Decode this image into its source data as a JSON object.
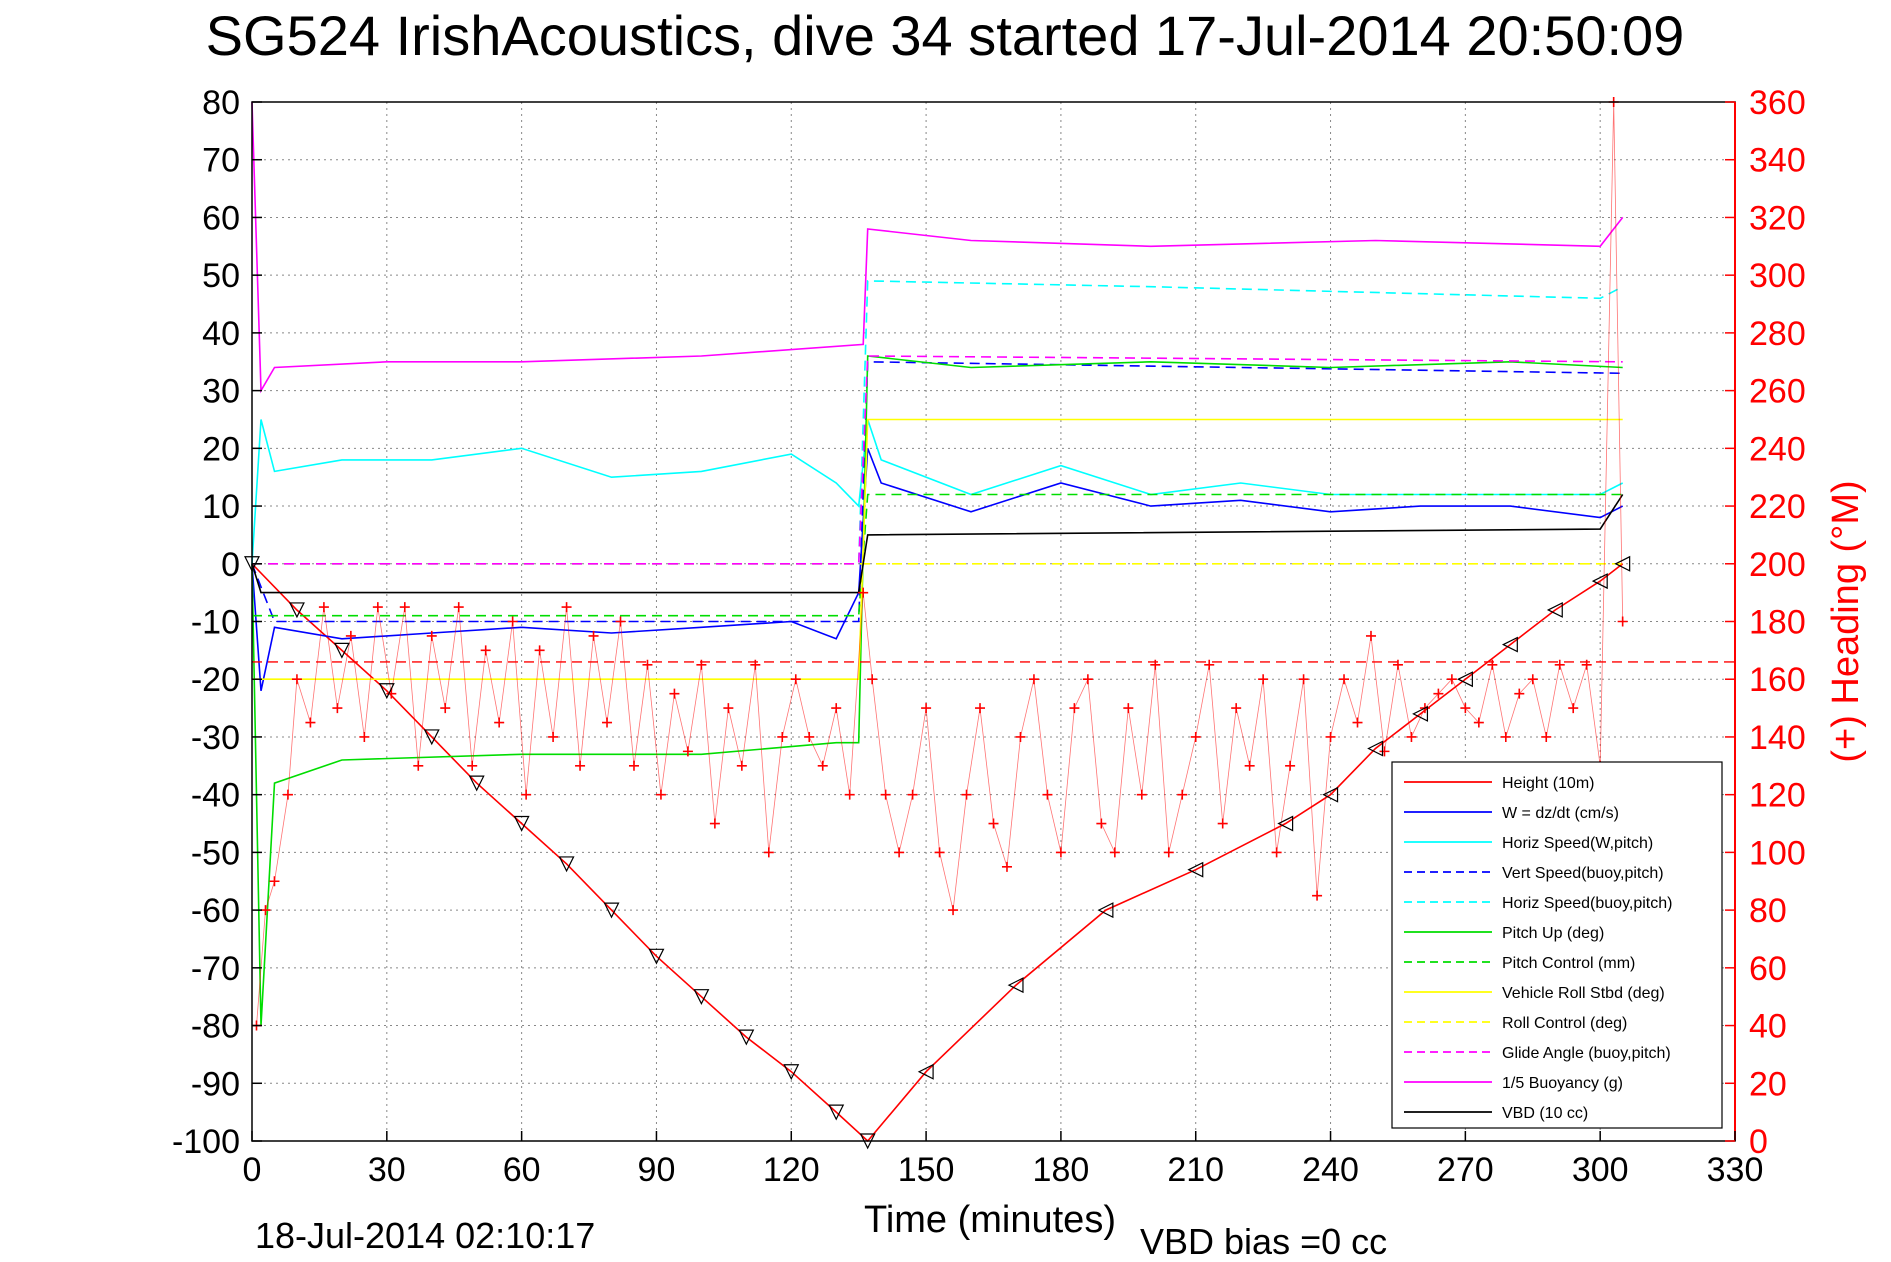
{
  "chart_data": {
    "type": "line",
    "title": "SG524 IrishAcoustics, dive 34 started 17-Jul-2014 20:50:09",
    "xlabel": "Time (minutes)",
    "ylabel": "",
    "y2label": "(+) Heading (°M)",
    "xlim": [
      0,
      330
    ],
    "ylim": [
      -100,
      80
    ],
    "y2lim": [
      0,
      360
    ],
    "grid": true,
    "legend_position": "bottom-right",
    "x_ticks": [
      "0",
      "30",
      "60",
      "90",
      "120",
      "150",
      "180",
      "210",
      "240",
      "270",
      "300",
      "330"
    ],
    "y_ticks": [
      "80",
      "70",
      "60",
      "50",
      "40",
      "30",
      "20",
      "10",
      "0",
      "-10",
      "-20",
      "-30",
      "-40",
      "-50",
      "-60",
      "-70",
      "-80",
      "-90",
      "-100"
    ],
    "y2_ticks": [
      "360",
      "340",
      "320",
      "300",
      "280",
      "260",
      "240",
      "220",
      "200",
      "180",
      "160",
      "140",
      "120",
      "100",
      "80",
      "60",
      "40",
      "20",
      "0"
    ],
    "footer_left": "18-Jul-2014 02:10:17",
    "footer_right": "VBD bias =0 cc",
    "colors": {
      "height": "#ff0000",
      "w": "#0000ff",
      "horiz_speed": "#00ffff",
      "pitch": "#00dd00",
      "roll": "#ffff00",
      "buoyancy": "#ff00ff",
      "vbd": "#000000",
      "heading": "#ff0000"
    },
    "series": [
      {
        "name": "Height (10m)",
        "style": "solid",
        "color": "#ff0000",
        "x": [
          0,
          10,
          20,
          30,
          40,
          50,
          60,
          70,
          80,
          90,
          100,
          110,
          120,
          130,
          137,
          150,
          170,
          190,
          210,
          230,
          240,
          250,
          260,
          270,
          280,
          290,
          300,
          305
        ],
        "y": [
          0,
          -8,
          -15,
          -22,
          -30,
          -38,
          -45,
          -52,
          -60,
          -68,
          -75,
          -82,
          -88,
          -95,
          -100,
          -88,
          -73,
          -60,
          -53,
          -45,
          -40,
          -32,
          -26,
          -20,
          -14,
          -8,
          -3,
          0
        ]
      },
      {
        "name": "W = dz/dt (cm/s)",
        "style": "solid",
        "color": "#0000ff",
        "x": [
          0,
          2,
          5,
          20,
          40,
          60,
          80,
          100,
          120,
          130,
          135,
          137,
          140,
          160,
          180,
          200,
          220,
          240,
          260,
          280,
          300,
          305
        ],
        "y": [
          0,
          -22,
          -11,
          -13,
          -12,
          -11,
          -12,
          -11,
          -10,
          -13,
          -5,
          20,
          14,
          9,
          14,
          10,
          11,
          9,
          10,
          10,
          8,
          10
        ]
      },
      {
        "name": "Horiz Speed(W,pitch)",
        "style": "solid",
        "color": "#00ffff",
        "x": [
          0,
          2,
          5,
          20,
          40,
          60,
          80,
          100,
          120,
          130,
          135,
          137,
          140,
          160,
          180,
          200,
          220,
          240,
          260,
          280,
          300,
          305
        ],
        "y": [
          0,
          25,
          16,
          18,
          18,
          20,
          15,
          16,
          19,
          14,
          10,
          25,
          18,
          12,
          17,
          12,
          14,
          12,
          12,
          12,
          12,
          14
        ]
      },
      {
        "name": "Vert Speed(buoy,pitch)",
        "style": "dashed",
        "color": "#0000ff",
        "x": [
          0,
          5,
          135,
          137,
          305
        ],
        "y": [
          0,
          -10,
          -10,
          35,
          33
        ]
      },
      {
        "name": "Horiz Speed(buoy,pitch)",
        "style": "dashed",
        "color": "#00ffff",
        "x": [
          0,
          5,
          135,
          137,
          200,
          300,
          305
        ],
        "y": [
          0,
          0,
          0,
          49,
          48,
          46,
          48
        ]
      },
      {
        "name": "Pitch Up (deg)",
        "style": "solid",
        "color": "#00dd00",
        "x": [
          0,
          2,
          5,
          20,
          60,
          100,
          130,
          135,
          137,
          160,
          200,
          240,
          280,
          305
        ],
        "y": [
          0,
          -80,
          -38,
          -34,
          -33,
          -33,
          -31,
          -31,
          36,
          34,
          35,
          34,
          35,
          34
        ]
      },
      {
        "name": "Pitch Control (mm)",
        "style": "dashed",
        "color": "#00dd00",
        "x": [
          0,
          135,
          137,
          305
        ],
        "y": [
          -9,
          -9,
          12,
          12
        ]
      },
      {
        "name": "Vehicle Roll Stbd (deg)",
        "style": "solid",
        "color": "#ffff00",
        "x": [
          0,
          60,
          135,
          137,
          305
        ],
        "y": [
          -20,
          -20,
          -20,
          25,
          25
        ]
      },
      {
        "name": "Roll Control (deg)",
        "style": "dashed",
        "color": "#ffff00",
        "x": [
          0,
          135,
          137,
          305
        ],
        "y": [
          0,
          0,
          0,
          0
        ]
      },
      {
        "name": "Glide Angle (buoy,pitch)",
        "style": "dashed",
        "color": "#ff00ff",
        "x": [
          0,
          135,
          137,
          305
        ],
        "y": [
          0,
          0,
          36,
          35
        ]
      },
      {
        "name": "1/5 Buoyancy (g)",
        "style": "solid",
        "color": "#ff00ff",
        "x": [
          0,
          2,
          5,
          30,
          60,
          100,
          136,
          137,
          160,
          200,
          250,
          300,
          305
        ],
        "y": [
          80,
          30,
          34,
          35,
          35,
          36,
          38,
          58,
          56,
          55,
          56,
          55,
          60
        ]
      },
      {
        "name": "VBD (10 cc)",
        "style": "solid",
        "color": "#000000",
        "x": [
          0,
          2,
          135,
          137,
          300,
          305
        ],
        "y": [
          0,
          -5,
          -5,
          5,
          6,
          12
        ]
      }
    ],
    "heading": {
      "name": "(+) Heading (°M)",
      "marker": "+",
      "color": "#ff0000",
      "reference_line": 166,
      "x": [
        1,
        3,
        5,
        8,
        10,
        13,
        16,
        19,
        22,
        25,
        28,
        31,
        34,
        37,
        40,
        43,
        46,
        49,
        52,
        55,
        58,
        61,
        64,
        67,
        70,
        73,
        76,
        79,
        82,
        85,
        88,
        91,
        94,
        97,
        100,
        103,
        106,
        109,
        112,
        115,
        118,
        121,
        124,
        127,
        130,
        133,
        136,
        138,
        141,
        144,
        147,
        150,
        153,
        156,
        159,
        162,
        165,
        168,
        171,
        174,
        177,
        180,
        183,
        186,
        189,
        192,
        195,
        198,
        201,
        204,
        207,
        210,
        213,
        216,
        219,
        222,
        225,
        228,
        231,
        234,
        237,
        240,
        243,
        246,
        249,
        252,
        255,
        258,
        261,
        264,
        267,
        270,
        273,
        276,
        279,
        282,
        285,
        288,
        291,
        294,
        297,
        300,
        303,
        305
      ],
      "y": [
        40,
        80,
        90,
        120,
        160,
        145,
        185,
        150,
        175,
        140,
        185,
        155,
        185,
        130,
        175,
        150,
        185,
        130,
        170,
        145,
        180,
        120,
        170,
        140,
        185,
        130,
        175,
        145,
        180,
        130,
        165,
        120,
        155,
        135,
        165,
        110,
        150,
        130,
        165,
        100,
        140,
        160,
        140,
        130,
        150,
        120,
        190,
        160,
        120,
        100,
        120,
        150,
        100,
        80,
        120,
        150,
        110,
        95,
        140,
        160,
        120,
        100,
        150,
        160,
        110,
        100,
        150,
        120,
        165,
        100,
        120,
        140,
        165,
        110,
        150,
        130,
        160,
        100,
        130,
        160,
        85,
        140,
        160,
        145,
        175,
        135,
        165,
        140,
        150,
        155,
        160,
        150,
        145,
        165,
        140,
        155,
        160,
        140,
        165,
        150,
        165,
        130,
        360,
        180
      ]
    }
  }
}
